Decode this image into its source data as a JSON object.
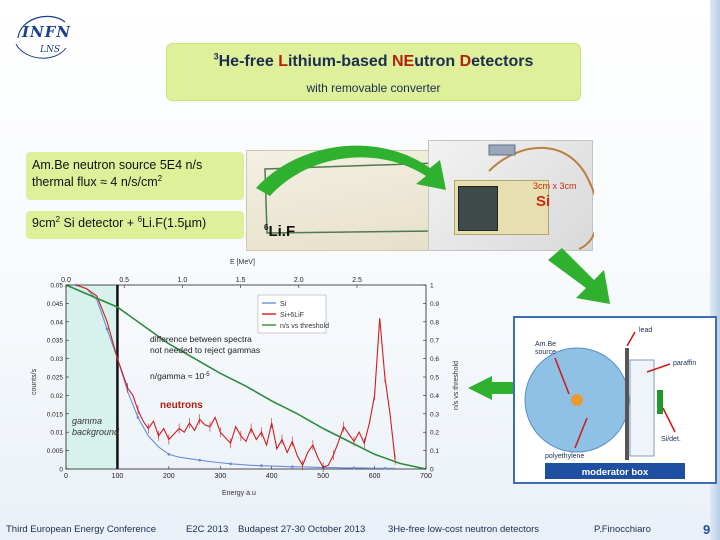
{
  "logo": {
    "main": "INFN",
    "sub": "LNS"
  },
  "title": {
    "sup": "3",
    "parts": [
      "He-free ",
      "L",
      "ithium-based ",
      "NE",
      "utron ",
      "D",
      "etectors"
    ],
    "subtitle": "with removable converter"
  },
  "source_box": {
    "line1": "Am.Be neutron source 5E4 n/s",
    "line2_pre": "thermal flux ≈ 4 n/s/cm",
    "line2_sup": "2"
  },
  "detector_box": {
    "pre": "9cm",
    "sup1": "2",
    "mid": " Si detector + ",
    "sup2": "6",
    "post": "Li.F(1.5µm)"
  },
  "photo_labels": {
    "lif_sup": "6",
    "lif": "Li.F",
    "det_size": "3cm x 3cm",
    "det_si": "Si"
  },
  "moderator": {
    "source": "Am.Be\nsource",
    "lead": "lead",
    "paraffin": "paraffin",
    "poly": "polyethylene",
    "det": "Si/det.",
    "caption": "moderator box"
  },
  "colors": {
    "accent_box": "#dff09a",
    "title_red": "#b2200f",
    "arrow_green": "#2fb12f",
    "si_blue": "#6a8fd6",
    "lif_red": "#cc1f1f",
    "ratio_green": "#2e8b3d",
    "gamma_fill": "#d7f1ec"
  },
  "chart_data": {
    "type": "line",
    "xlabel": "Energy a.u",
    "ylabel": "counts/s",
    "y2label": "n/s vs threshold",
    "top_xlabel": "E [MeV]",
    "xlim": [
      0,
      700
    ],
    "ylim": [
      0,
      0.05
    ],
    "y2lim": [
      0,
      1
    ],
    "top_xlim": [
      0.0,
      3.0
    ],
    "x_ticks": [
      "0",
      "100",
      "200",
      "300",
      "400",
      "500",
      "600",
      "700"
    ],
    "y_ticks": [
      "0",
      "0.005",
      "0.01",
      "0.015",
      "0.02",
      "0.025",
      "0.03",
      "0.035",
      "0.04",
      "0.045",
      "0.05"
    ],
    "y2_ticks": [
      "0",
      "0.1",
      "0.2",
      "0.3",
      "0.4",
      "0.5",
      "0.6",
      "0.7",
      "0.8",
      "0.9",
      "1"
    ],
    "top_ticks": [
      "0.0",
      "0.5",
      "1.0",
      "1.5",
      "2.0",
      "2.5"
    ],
    "legend_position": "top-right",
    "series": [
      {
        "name": "Si",
        "color": "#6a8fd6",
        "x": [
          20,
          40,
          60,
          80,
          100,
          120,
          140,
          160,
          180,
          200,
          220,
          240,
          260,
          280,
          300,
          320,
          340,
          360,
          380,
          400,
          420,
          440,
          460,
          480,
          500,
          520,
          540,
          560,
          580,
          600,
          620,
          640
        ],
        "y": [
          0.05,
          0.049,
          0.046,
          0.038,
          0.03,
          0.021,
          0.014,
          0.009,
          0.006,
          0.004,
          0.0032,
          0.0028,
          0.0024,
          0.002,
          0.0017,
          0.0014,
          0.0012,
          0.001,
          0.0009,
          0.0008,
          0.0007,
          0.0006,
          0.0006,
          0.0005,
          0.0004,
          0.0004,
          0.0003,
          0.0003,
          0.0003,
          0.0002,
          0.0002,
          0.0002
        ]
      },
      {
        "name": "Si+6LiF",
        "color": "#cc1f1f",
        "x": [
          20,
          40,
          60,
          80,
          100,
          110,
          120,
          130,
          140,
          150,
          160,
          170,
          180,
          190,
          200,
          210,
          220,
          230,
          240,
          250,
          260,
          270,
          280,
          290,
          300,
          310,
          320,
          330,
          340,
          350,
          360,
          370,
          380,
          390,
          400,
          410,
          420,
          430,
          440,
          450,
          460,
          470,
          480,
          490,
          500,
          510,
          520,
          530,
          540,
          550,
          560,
          570,
          580,
          590,
          600,
          610,
          620,
          630,
          640
        ],
        "y": [
          0.05,
          0.049,
          0.047,
          0.04,
          0.03,
          0.026,
          0.022,
          0.02,
          0.016,
          0.013,
          0.011,
          0.013,
          0.009,
          0.011,
          0.008,
          0.0095,
          0.011,
          0.01,
          0.0125,
          0.0105,
          0.0135,
          0.012,
          0.0115,
          0.014,
          0.01,
          0.0085,
          0.007,
          0.0115,
          0.009,
          0.0075,
          0.011,
          0.008,
          0.01,
          0.0065,
          0.0125,
          0.0055,
          0.008,
          0.0045,
          0.0075,
          0.0035,
          0.001,
          0.0045,
          0.0065,
          0.003,
          0.0005,
          0.001,
          0.0038,
          0.0075,
          0.0115,
          0.0095,
          0.0075,
          0.01,
          0.007,
          0.0125,
          0.02,
          0.041,
          0.025,
          0.015,
          0.0025
        ]
      },
      {
        "name": "n/s vs threshold",
        "color": "#2e8b3d",
        "x": [
          0,
          100,
          150,
          200,
          250,
          300,
          350,
          400,
          450,
          500,
          550,
          600,
          650,
          700
        ],
        "y": [
          1.0,
          0.88,
          0.78,
          0.68,
          0.6,
          0.52,
          0.45,
          0.37,
          0.3,
          0.22,
          0.15,
          0.08,
          0.03,
          0.0
        ]
      }
    ],
    "annotations": [
      "difference between spectra",
      "not needed to reject gammas",
      "n/gamma ≈ 10",
      "-5",
      "neutrons",
      "gamma",
      "background"
    ]
  },
  "footer": {
    "conf": "Third European Energy Conference",
    "abbr": "E2C 2013",
    "place": "Budapest 27-30 October 2013",
    "topic": "3He-free low-cost neutron detectors",
    "author": "P.Finocchiaro",
    "page": "9"
  }
}
